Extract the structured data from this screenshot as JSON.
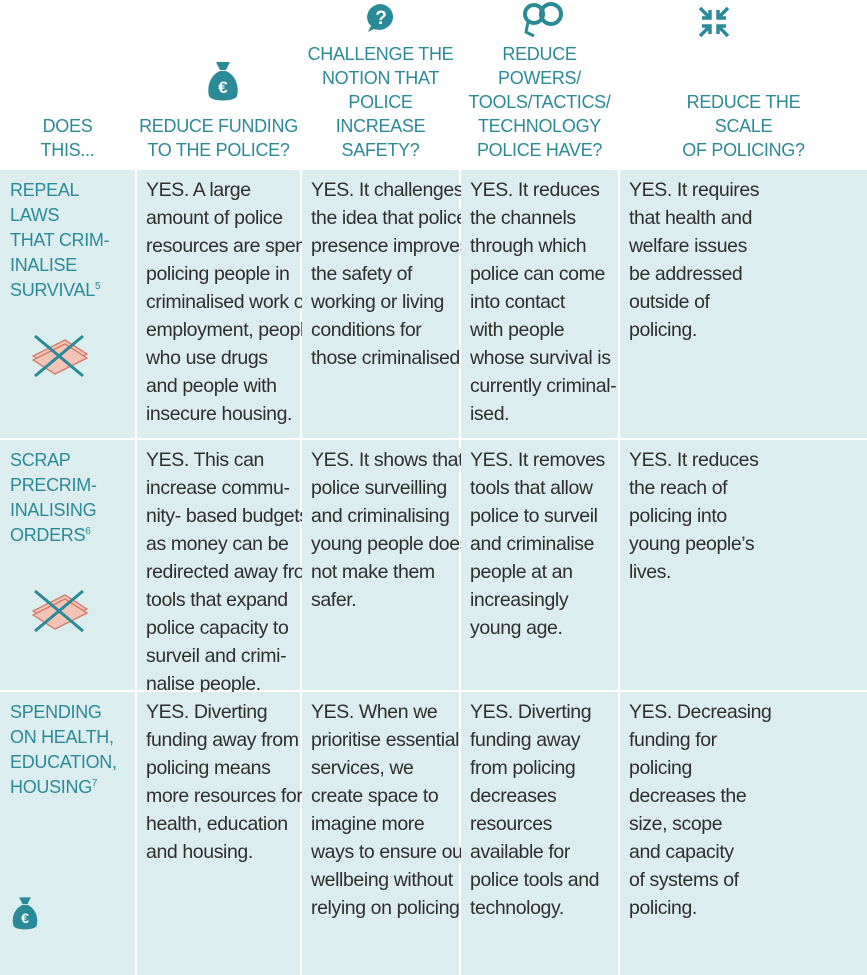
{
  "header": {
    "corner": [
      "DOES",
      "THIS..."
    ],
    "columns": [
      [
        "REDUCE FUNDING",
        "TO THE POLICE?"
      ],
      [
        "CHALLENGE THE",
        "NOTION THAT",
        "POLICE INCREASE",
        "SAFETY?"
      ],
      [
        "REDUCE POWERS/",
        "TOOLS/TACTICS/",
        "TECHNOLOGY",
        "POLICE HAVE?"
      ],
      [
        "REDUCE THE",
        "SCALE",
        "OF POLICING?"
      ]
    ]
  },
  "rows": [
    {
      "label": [
        "REPEAL",
        "LAWS",
        "THAT CRIM-",
        "INALISE",
        "SURVIVAL"
      ],
      "footnote": "5",
      "cells": [
        [
          "YES. A large",
          "amount of police",
          "resources are spent",
          "policing people in",
          "criminalised work or",
          "employment, people",
          "who use drugs",
          "and people with",
          "insecure housing."
        ],
        [
          "YES. It challenges",
          "the idea that police",
          "presence improves",
          "the safety of",
          "working or living",
          "conditions for",
          "those criminalised."
        ],
        [
          "YES. It reduces",
          "the channels",
          "through which",
          "police can come",
          "into contact",
          "with people",
          "whose survival is",
          "currently criminal-",
          "ised."
        ],
        [
          "YES. It requires",
          "that health and",
          "welfare issues",
          "be addressed",
          "outside of",
          "policing."
        ]
      ]
    },
    {
      "label": [
        "SCRAP",
        "PRECRIM-",
        "INALISING",
        "ORDERS"
      ],
      "footnote": "6",
      "cells": [
        [
          "YES. This can",
          "increase commu-",
          "nity- based budgets",
          "as money can be",
          "redirected away from",
          "tools that expand",
          "police capacity to",
          "surveil and crimi-",
          "nalise people."
        ],
        [
          "YES. It shows that",
          "police surveilling",
          "and criminalising",
          "young people does",
          "not make them",
          "safer."
        ],
        [
          "YES. It removes",
          "tools that allow",
          "police to surveil",
          "and criminalise",
          "people at an",
          "increasingly",
          "young age."
        ],
        [
          "YES. It reduces",
          "the reach of",
          "policing into",
          "young people’s",
          "lives."
        ]
      ]
    },
    {
      "label": [
        "SPENDING",
        "ON HEALTH,",
        "EDUCATION,",
        "HOUSING"
      ],
      "footnote": "7",
      "cells": [
        [
          "YES. Diverting",
          "funding away from",
          "policing means",
          "more resources for",
          "health, education",
          "and housing."
        ],
        [
          "YES. When we",
          "prioritise essential",
          "services, we",
          "create space to",
          "imagine more",
          "ways to ensure our",
          "wellbeing without",
          "relying on policing."
        ],
        [
          "YES. Diverting",
          "funding away",
          "from policing",
          "decreases",
          "resources",
          "available for",
          "police tools and",
          "technology."
        ],
        [
          "YES. Decreasing",
          "funding for",
          "policing",
          "decreases the",
          "size, scope",
          "and capacity",
          "of systems of",
          "policing."
        ]
      ]
    }
  ]
}
